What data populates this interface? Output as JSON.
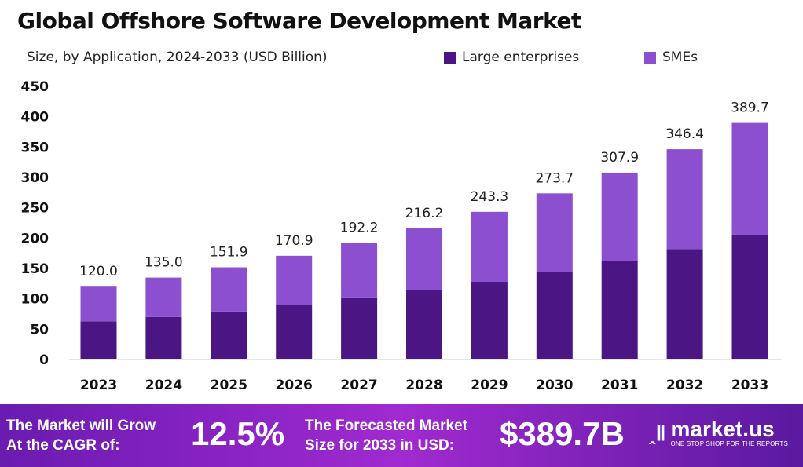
{
  "chart_data": {
    "type": "bar",
    "stacked": true,
    "title": "Global Offshore Software Development Market",
    "subtitle": "Size, by Application, 2024-2033 (USD Billion)",
    "categories": [
      "2023",
      "2024",
      "2025",
      "2026",
      "2027",
      "2028",
      "2029",
      "2030",
      "2031",
      "2032",
      "2033"
    ],
    "totals": [
      "120.0",
      "135.0",
      "151.9",
      "170.9",
      "192.2",
      "216.2",
      "243.3",
      "273.7",
      "307.9",
      "346.4",
      "389.7"
    ],
    "series": [
      {
        "name": "Large enterprises",
        "color": "#4b1584",
        "values": [
          63,
          70,
          79,
          90,
          101,
          114,
          128,
          144,
          162,
          182,
          206
        ]
      },
      {
        "name": "SMEs",
        "color": "#8b4fd0",
        "values": [
          57,
          65,
          72.9,
          80.9,
          91.2,
          102.2,
          115.3,
          129.7,
          145.9,
          164.4,
          183.7
        ]
      }
    ],
    "ylim": [
      0,
      450
    ],
    "yticks": [
      0,
      50,
      100,
      150,
      200,
      250,
      300,
      350,
      400,
      450
    ],
    "grid": false,
    "legend": "top-right"
  },
  "banner": {
    "cagr_label_1": "The Market will Grow",
    "cagr_label_2": "At the CAGR of:",
    "cagr_value": "12.5%",
    "forecast_label_1": "The Forecasted Market",
    "forecast_label_2": "Size for 2033 in USD:",
    "forecast_value": "$389.7B",
    "logo_text": "market.us",
    "logo_tagline": "ONE STOP SHOP FOR THE REPORTS"
  }
}
